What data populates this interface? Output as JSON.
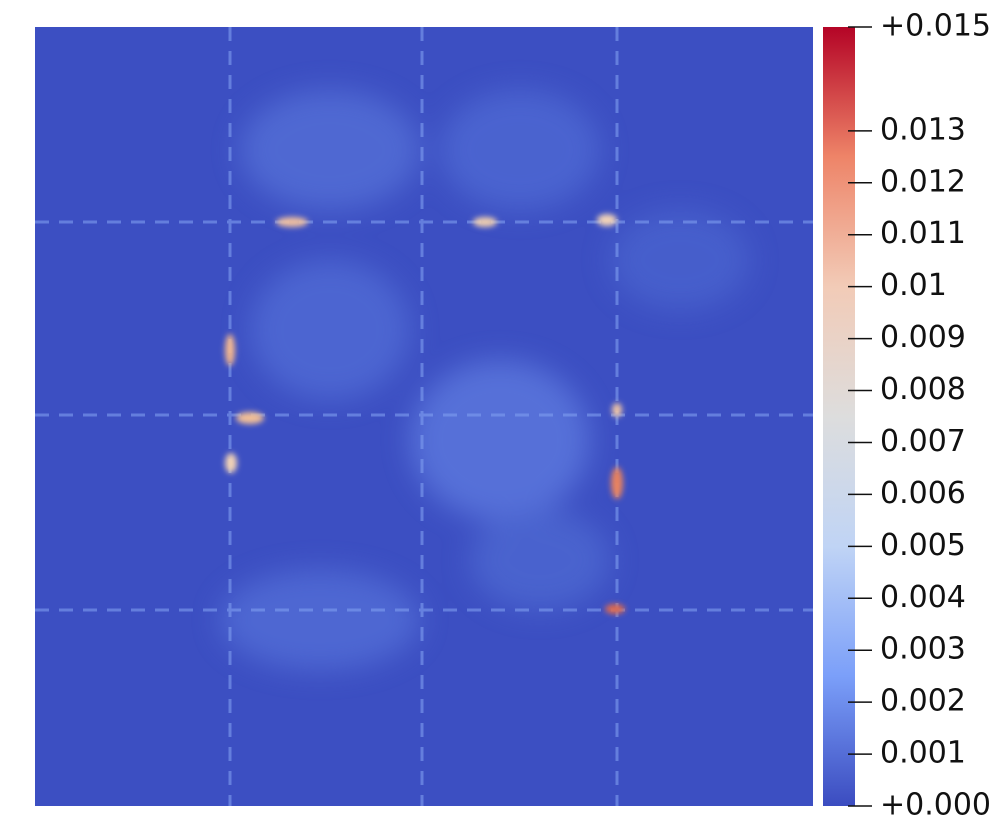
{
  "chart_data": {
    "type": "heatmap",
    "colorbar": {
      "lim": [
        0,
        0.015
      ],
      "colors": [
        "#3b4cc0",
        "#7b9ff9",
        "#c0d4f5",
        "#dddddd",
        "#f2cbb7",
        "#ee8468",
        "#b40426"
      ],
      "ticks": [
        {
          "value": 0.015,
          "label": "+0.015"
        },
        0.013,
        0.012,
        0.011,
        0.01,
        0.009,
        0.008,
        0.007,
        0.006,
        0.005,
        0.004,
        0.003,
        0.002,
        0.001,
        {
          "value": 0,
          "label": "+0.000"
        }
      ]
    }
  }
}
